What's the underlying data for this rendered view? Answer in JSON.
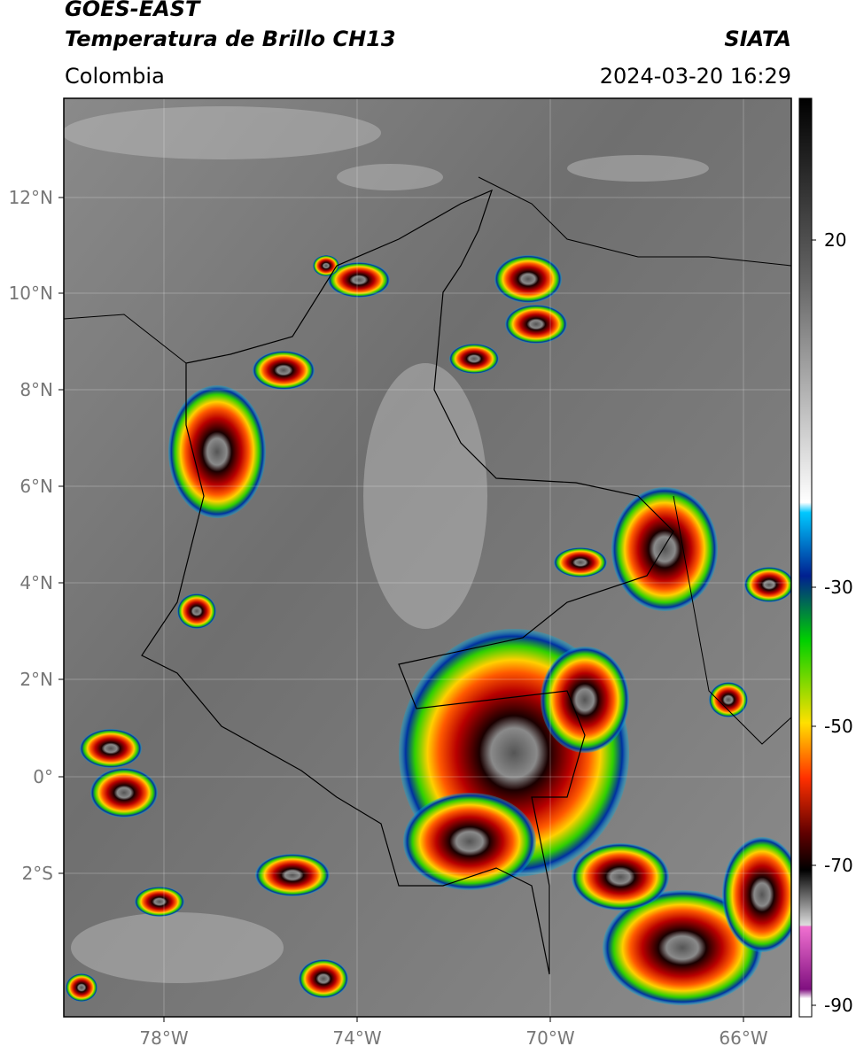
{
  "header": {
    "satellite": "GOES-EAST",
    "product": "Temperatura de Brillo CH13",
    "region": "Colombia",
    "source": "SIATA",
    "timestamp": "2024-03-20 16:29"
  },
  "map": {
    "lat_labels": [
      "12°N",
      "10°N",
      "8°N",
      "6°N",
      "4°N",
      "2°N",
      "0°",
      "2°S"
    ],
    "lon_labels": [
      "78°W",
      "74°W",
      "70°W",
      "66°W"
    ]
  },
  "colorbar": {
    "labels": [
      20,
      -30,
      -50,
      -70,
      -90
    ]
  }
}
